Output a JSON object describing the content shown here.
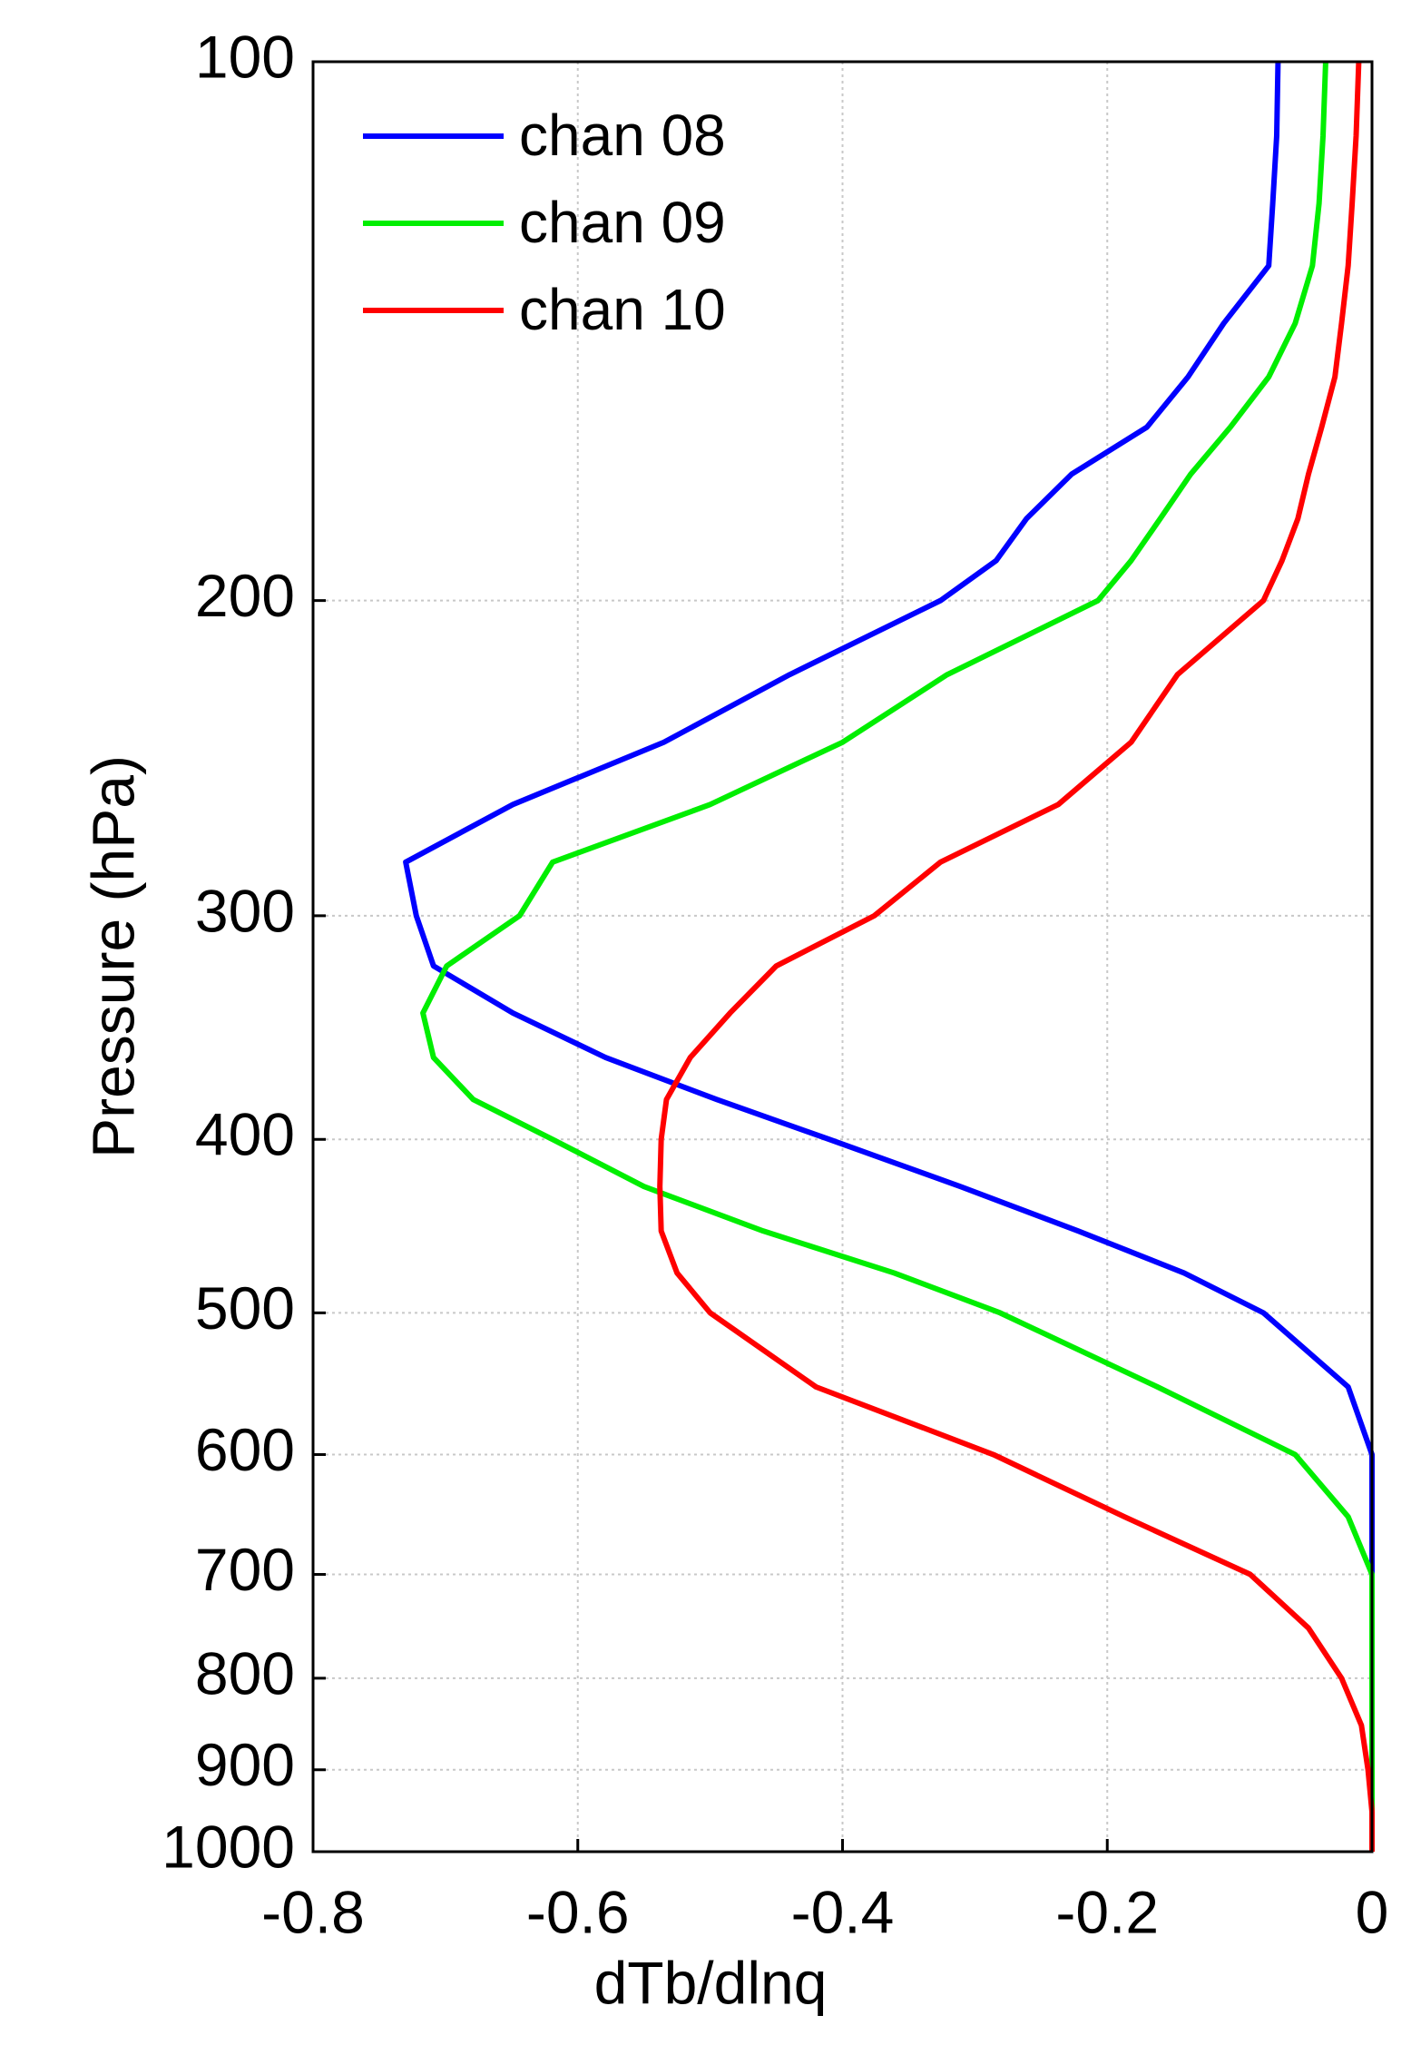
{
  "chart_data": {
    "type": "line",
    "x_label": "dTb/dlnq",
    "y_label": "Pressure (hPa)",
    "xlim": [
      -0.8,
      0
    ],
    "xticks": [
      -0.8,
      -0.6,
      -0.4,
      -0.2,
      0
    ],
    "ylim": [
      100,
      1000
    ],
    "y_log": true,
    "y_reversed": true,
    "yticks": [
      100,
      200,
      300,
      400,
      500,
      600,
      700,
      800,
      900,
      1000
    ],
    "grid": true,
    "legend": "upper left",
    "y": [
      100,
      110,
      120,
      130,
      140,
      150,
      160,
      170,
      180,
      190,
      200,
      220,
      240,
      260,
      280,
      300,
      320,
      340,
      360,
      380,
      400,
      425,
      450,
      475,
      500,
      550,
      600,
      650,
      700,
      750,
      800,
      850,
      900,
      950,
      1000
    ],
    "series": [
      {
        "name": "chan 08",
        "color": "#0000ff",
        "values": [
          -0.071,
          -0.072,
          -0.075,
          -0.078,
          -0.112,
          -0.139,
          -0.17,
          -0.227,
          -0.261,
          -0.284,
          -0.326,
          -0.44,
          -0.535,
          -0.649,
          -0.73,
          -0.722,
          -0.709,
          -0.649,
          -0.579,
          -0.495,
          -0.41,
          -0.311,
          -0.222,
          -0.142,
          -0.082,
          -0.018,
          0,
          0,
          0,
          0,
          0,
          0,
          0,
          0,
          0
        ]
      },
      {
        "name": "chan 09",
        "color": "#00ee00",
        "values": [
          -0.035,
          -0.037,
          -0.04,
          -0.045,
          -0.058,
          -0.078,
          -0.107,
          -0.137,
          -0.16,
          -0.182,
          -0.207,
          -0.321,
          -0.4,
          -0.5,
          -0.619,
          -0.644,
          -0.699,
          -0.717,
          -0.709,
          -0.679,
          -0.619,
          -0.55,
          -0.46,
          -0.361,
          -0.281,
          -0.162,
          -0.058,
          -0.018,
          0,
          0,
          0,
          0,
          0,
          0,
          0
        ]
      },
      {
        "name": "chan 10",
        "color": "#ff0000",
        "values": [
          -0.01,
          -0.012,
          -0.015,
          -0.018,
          -0.023,
          -0.028,
          -0.038,
          -0.048,
          -0.056,
          -0.068,
          -0.082,
          -0.147,
          -0.182,
          -0.237,
          -0.326,
          -0.376,
          -0.45,
          -0.485,
          -0.515,
          -0.533,
          -0.537,
          -0.538,
          -0.537,
          -0.525,
          -0.5,
          -0.42,
          -0.286,
          -0.187,
          -0.092,
          -0.048,
          -0.023,
          -0.008,
          -0.003,
          0,
          0
        ]
      }
    ]
  }
}
